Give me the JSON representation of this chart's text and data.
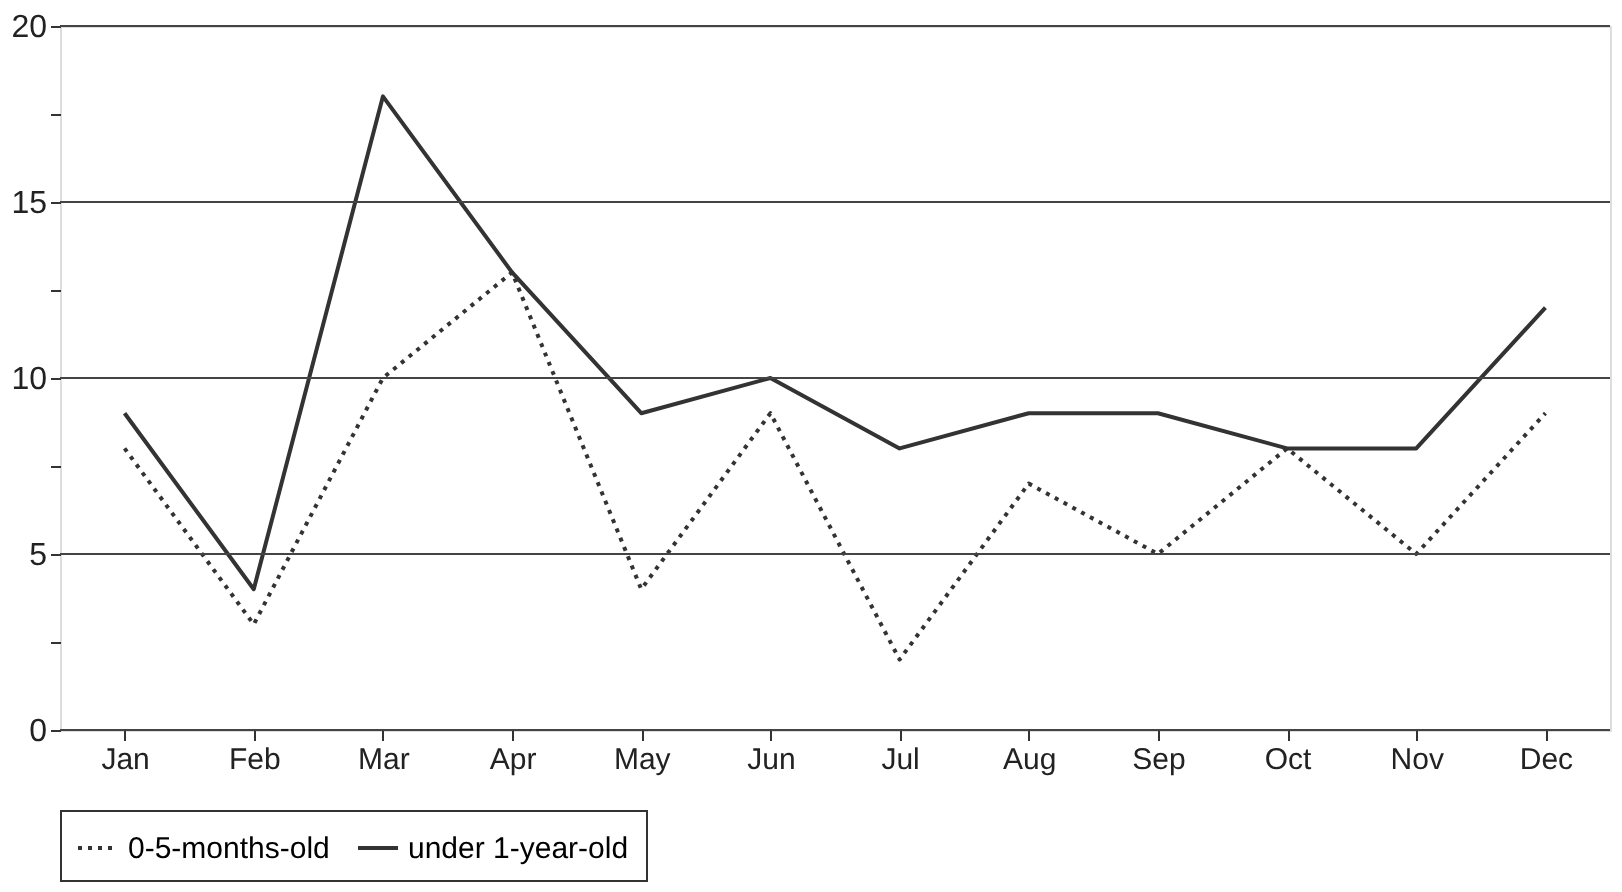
{
  "chart_data": {
    "type": "line",
    "categories": [
      "Jan",
      "Feb",
      "Mar",
      "Apr",
      "May",
      "Jun",
      "Jul",
      "Aug",
      "Sep",
      "Oct",
      "Nov",
      "Dec"
    ],
    "series": [
      {
        "name": "0-5-months-old",
        "color": "#333333",
        "line_style": "dotted",
        "values": [
          8,
          3,
          10,
          13,
          4,
          9,
          2,
          7,
          5,
          8,
          5,
          9
        ]
      },
      {
        "name": "under 1-year-old",
        "color": "#333333",
        "line_style": "solid",
        "values": [
          9,
          4,
          18,
          13,
          9,
          10,
          8,
          9,
          9,
          8,
          8,
          12
        ]
      }
    ],
    "ylim": [
      0,
      20
    ],
    "yticks": [
      0,
      {
        "value": 2.5,
        "label": null
      },
      5,
      {
        "value": 7.5,
        "label": null
      },
      10,
      {
        "value": 12.5,
        "label": null
      },
      15,
      {
        "value": 17.5,
        "label": null
      },
      20
    ],
    "grid": "y",
    "legend": "bottom",
    "marker": "none"
  }
}
